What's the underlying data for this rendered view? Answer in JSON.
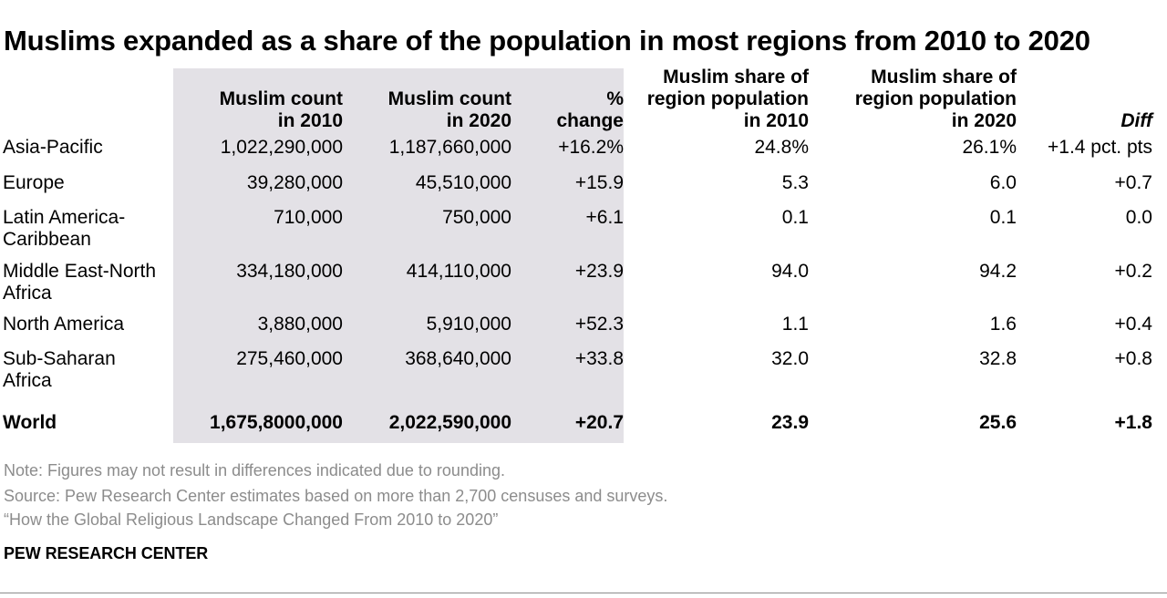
{
  "chart_data": {
    "type": "table",
    "title": "Muslims expanded as a share of the population in most regions from 2010 to 2020",
    "columns": [
      "",
      "Muslim count in 2010",
      "Muslim count in 2020",
      "% change",
      "Muslim share of region population in 2010",
      "Muslim share of region population in 2020",
      "Diff"
    ],
    "rows": [
      {
        "region": "Asia-Pacific",
        "count_2010": "1,022,290,000",
        "count_2020": "1,187,660,000",
        "pct_change": "+16.2%",
        "share_2010": "24.8%",
        "share_2020": "26.1%",
        "diff": "+1.4 pct. pts"
      },
      {
        "region": "Europe",
        "count_2010": "39,280,000",
        "count_2020": "45,510,000",
        "pct_change": "+15.9",
        "share_2010": "5.3",
        "share_2020": "6.0",
        "diff": "+0.7"
      },
      {
        "region": "Latin America-Caribbean",
        "count_2010": "710,000",
        "count_2020": "750,000",
        "pct_change": "+6.1",
        "share_2010": "0.1",
        "share_2020": "0.1",
        "diff": "0.0"
      },
      {
        "region": "Middle East-North Africa",
        "count_2010": "334,180,000",
        "count_2020": "414,110,000",
        "pct_change": "+23.9",
        "share_2010": "94.0",
        "share_2020": "94.2",
        "diff": "+0.2"
      },
      {
        "region": "North America",
        "count_2010": "3,880,000",
        "count_2020": "5,910,000",
        "pct_change": "+52.3",
        "share_2010": "1.1",
        "share_2020": "1.6",
        "diff": "+0.4"
      },
      {
        "region": "Sub-Saharan Africa",
        "count_2010": "275,460,000",
        "count_2020": "368,640,000",
        "pct_change": "+33.8",
        "share_2010": "32.0",
        "share_2020": "32.8",
        "diff": "+0.8"
      }
    ],
    "total": {
      "region": "World",
      "count_2010": "1,675,8000,000",
      "count_2020": "2,022,590,000",
      "pct_change": "+20.7",
      "share_2010": "23.9",
      "share_2020": "25.6",
      "diff": "+1.8"
    }
  },
  "headers": {
    "count_2010": [
      "Muslim count",
      "in 2010"
    ],
    "count_2020": [
      "Muslim count",
      "in 2020"
    ],
    "pct_change": [
      "%",
      "change"
    ],
    "share_2010": [
      "Muslim share of",
      "region population",
      "in 2010"
    ],
    "share_2020": [
      "Muslim share of",
      "region population",
      "in 2020"
    ],
    "diff": [
      "Diff"
    ]
  },
  "region_labels": [
    [
      "Asia-Pacific"
    ],
    [
      "Europe"
    ],
    [
      "Latin America-",
      "Caribbean"
    ],
    [
      "Middle East-North",
      "Africa"
    ],
    [
      "North America"
    ],
    [
      "Sub-Saharan",
      "Africa"
    ]
  ],
  "footer": {
    "note": "Note: Figures may not result in differences indicated due to rounding.",
    "source": "Source: Pew Research Center estimates based on more than 2,700 censuses and surveys.",
    "report": "“How the Global Religious Landscape Changed From 2010 to 2020”",
    "brand": "PEW RESEARCH CENTER"
  },
  "colors": {
    "shade": "#e3e1e6",
    "footer_text": "#8c8c8c"
  }
}
